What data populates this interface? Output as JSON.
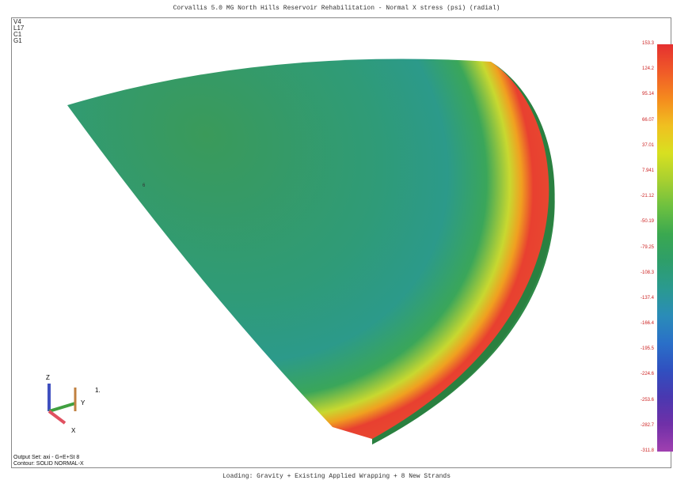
{
  "title": "Corvallis 5.0 MG North Hills Reservoir Rehabilitation - Normal X stress (psi) (radial)",
  "view_labels": [
    "V4",
    "L17",
    "C1",
    "G1"
  ],
  "legend": {
    "labels": [
      "153.3",
      "124.2",
      "95.14",
      "66.07",
      "37.01",
      "7.941",
      "-21.12",
      "-50.19",
      "-79.25",
      "-108.3",
      "-137.4",
      "-166.4",
      "-195.5",
      "-224.6",
      "-253.6",
      "-282.7",
      "-311.8"
    ]
  },
  "axes": {
    "z": "Z",
    "y": "Y",
    "x": "X"
  },
  "view_number": "1.",
  "node_label": "6",
  "output_set": "Output Set: axi - G+E+St 8",
  "contour": "Contour: SOLID NORMAL-X",
  "footer": "Loading: Gravity + Existing Applied Wrapping + 8 New Strands"
}
